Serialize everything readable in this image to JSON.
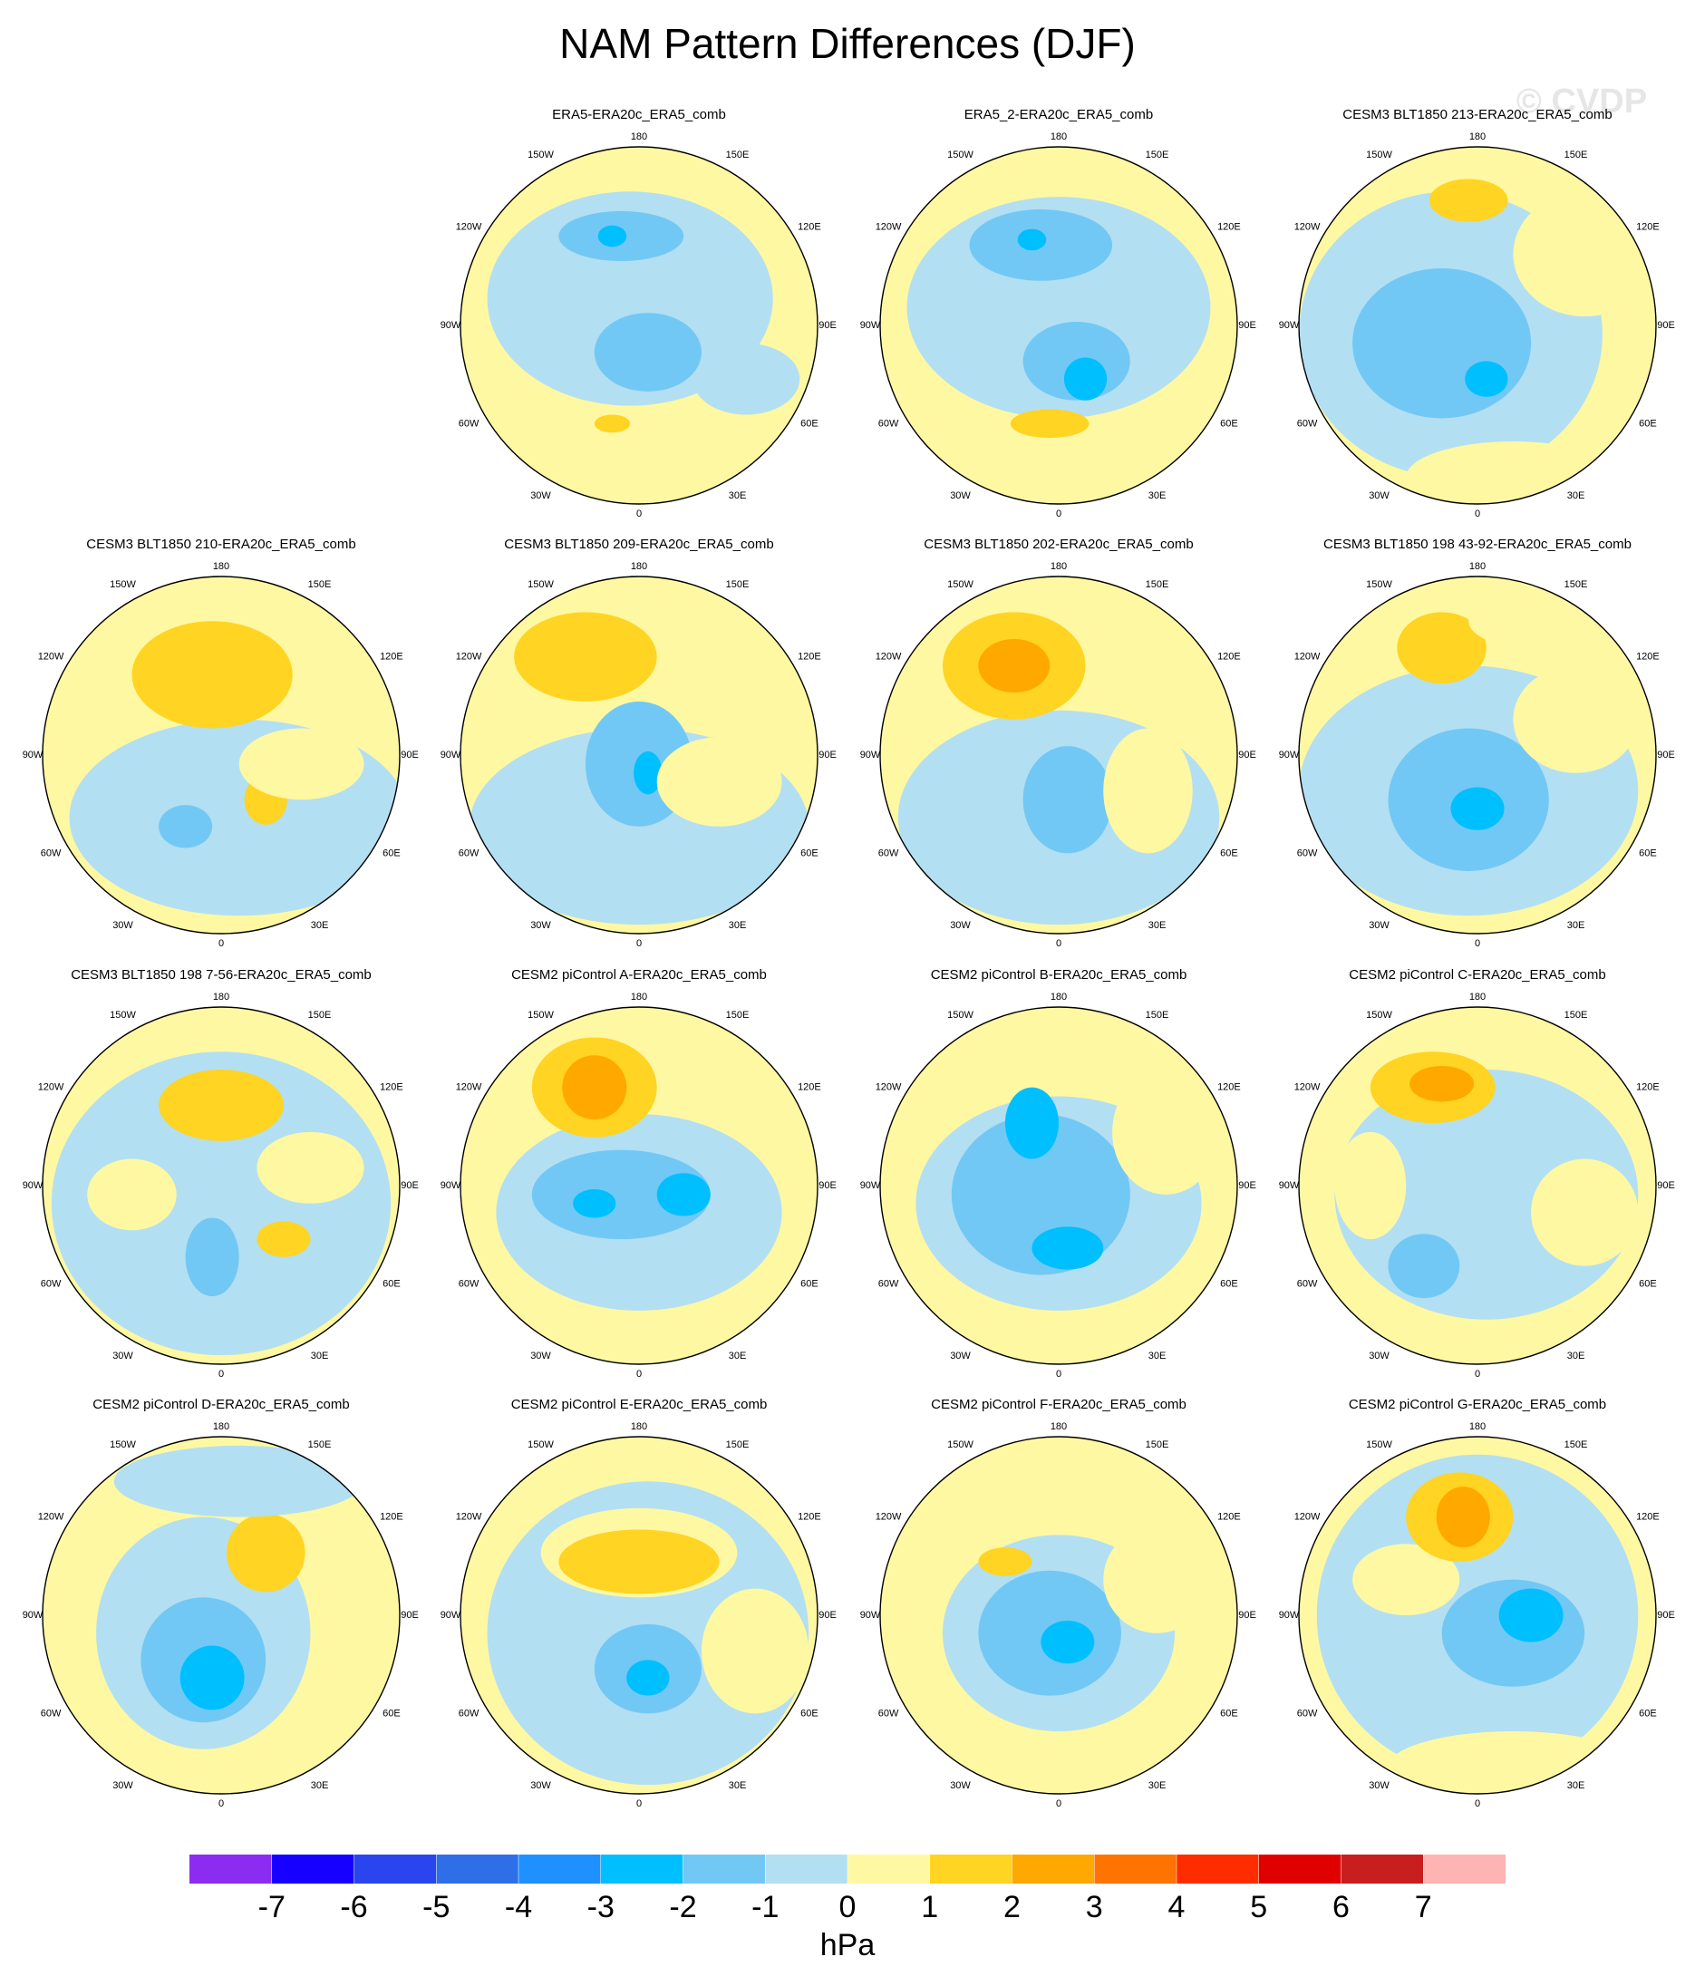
{
  "title": "NAM Pattern Differences (DJF)",
  "watermark": "© CVDP",
  "panels": [
    {
      "title": "ERA5-ERA20c_ERA5_comb"
    },
    {
      "title": "ERA5_2-ERA20c_ERA5_comb"
    },
    {
      "title": "CESM3 BLT1850 213-ERA20c_ERA5_comb"
    },
    {
      "title": "CESM3 BLT1850 210-ERA20c_ERA5_comb"
    },
    {
      "title": "CESM3 BLT1850 209-ERA20c_ERA5_comb"
    },
    {
      "title": "CESM3 BLT1850 202-ERA20c_ERA5_comb"
    },
    {
      "title": "CESM3 BLT1850 198 43-92-ERA20c_ERA5_comb"
    },
    {
      "title": "CESM3 BLT1850 198 7-56-ERA20c_ERA5_comb"
    },
    {
      "title": "CESM2 piControl A-ERA20c_ERA5_comb"
    },
    {
      "title": "CESM2 piControl B-ERA20c_ERA5_comb"
    },
    {
      "title": "CESM2 piControl C-ERA20c_ERA5_comb"
    },
    {
      "title": "CESM2 piControl D-ERA20c_ERA5_comb"
    },
    {
      "title": "CESM2 piControl E-ERA20c_ERA5_comb"
    },
    {
      "title": "CESM2 piControl F-ERA20c_ERA5_comb"
    },
    {
      "title": "CESM2 piControl G-ERA20c_ERA5_comb"
    }
  ],
  "longitude_labels": [
    "0",
    "30E",
    "60E",
    "90E",
    "120E",
    "150E",
    "180",
    "150W",
    "120W",
    "90W",
    "60W",
    "30W"
  ],
  "colorbar": {
    "colors": [
      "#8c2cf0",
      "#1600ff",
      "#2a45ee",
      "#2e6fe8",
      "#1e90ff",
      "#00bfff",
      "#72c8f4",
      "#b3dff2",
      "#fff8a3",
      "#ffd422",
      "#ffa800",
      "#ff7300",
      "#ff2c00",
      "#e00000",
      "#c81e1e",
      "#ffb4b4"
    ],
    "ticks": [
      -7,
      -6,
      -5,
      -4,
      -3,
      -2,
      -1,
      0,
      1,
      2,
      3,
      4,
      5,
      6,
      7
    ],
    "label": "hPa"
  }
}
